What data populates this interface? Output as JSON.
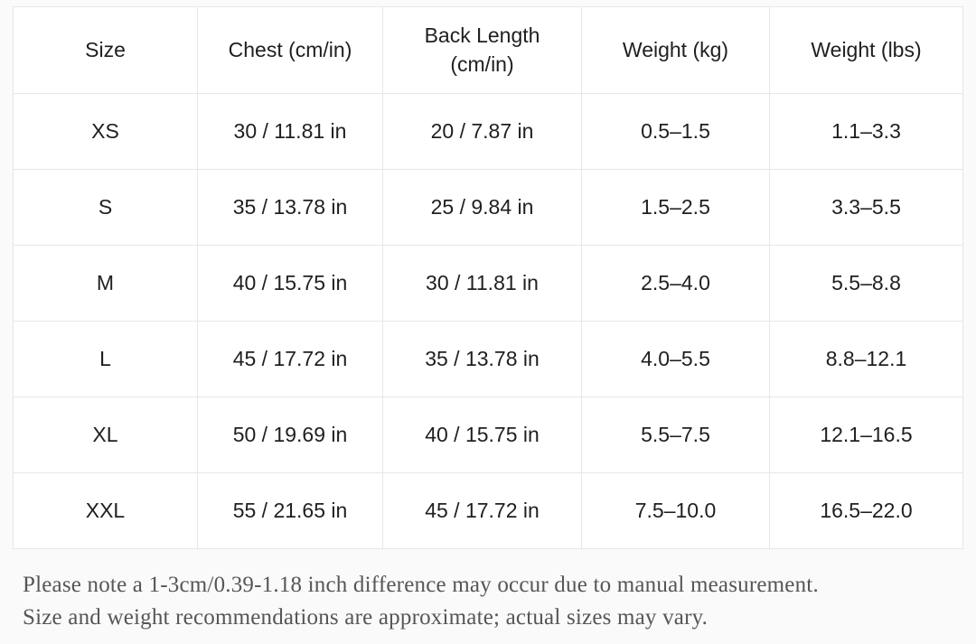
{
  "sizing_table": {
    "headers": [
      "Size",
      "Chest (cm/in)",
      "Back Length (cm/in)",
      "Weight (kg)",
      "Weight (lbs)"
    ],
    "rows": [
      [
        "XS",
        "30 / 11.81 in",
        "20 / 7.87 in",
        "0.5–1.5",
        "1.1–3.3"
      ],
      [
        "S",
        "35 / 13.78 in",
        "25 / 9.84 in",
        "1.5–2.5",
        "3.3–5.5"
      ],
      [
        "M",
        "40 / 15.75 in",
        "30 / 11.81 in",
        "2.5–4.0",
        "5.5–8.8"
      ],
      [
        "L",
        "45 / 17.72 in",
        "35 / 13.78 in",
        "4.0–5.5",
        "8.8–12.1"
      ],
      [
        "XL",
        "50 / 19.69 in",
        "40 / 15.75 in",
        "5.5–7.5",
        "12.1–16.5"
      ],
      [
        "XXL",
        "55 / 21.65 in",
        "45 / 17.72 in",
        "7.5–10.0",
        "16.5–22.0"
      ]
    ]
  },
  "note": {
    "line1": "Please note a 1-3cm/0.39-1.18 inch difference may occur due to manual measurement.",
    "line2": "Size and weight recommendations are approximate; actual sizes may vary."
  },
  "colors": {
    "page_background": "#fafafa",
    "cell_background": "#ffffff",
    "border": "#e7e7e7",
    "table_text": "#1f1f1f",
    "note_text": "#565656"
  }
}
